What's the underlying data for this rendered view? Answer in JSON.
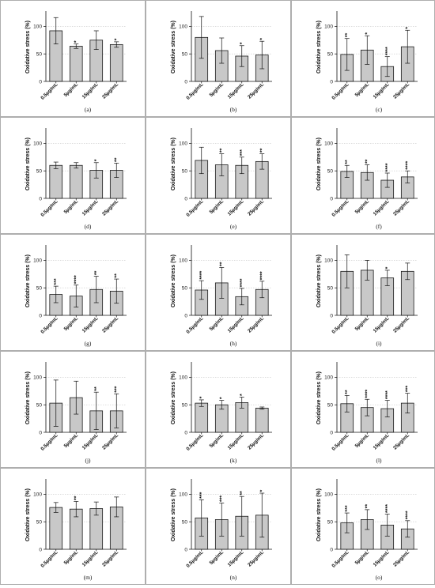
{
  "chart_data": [
    {
      "type": "bar",
      "panel_label": "(a)",
      "ylabel": "Oxidative stress (%)",
      "categories": [
        "0.5µg/mL",
        "5µg/mL",
        "15µg/mL",
        "25µg/mL"
      ],
      "values": [
        92,
        64,
        75,
        67
      ],
      "errors": [
        24,
        4,
        17,
        5
      ],
      "significance": [
        "",
        "*",
        "",
        "*"
      ],
      "ylim": [
        0,
        125
      ],
      "yticks": [
        0,
        50,
        100
      ],
      "grid": true
    },
    {
      "type": "bar",
      "panel_label": "(b)",
      "ylabel": "Oxidative stress (%)",
      "categories": [
        "0.5µg/mL",
        "5µg/mL",
        "15µg/mL",
        "25µg/mL"
      ],
      "values": [
        80,
        56,
        46,
        48
      ],
      "errors": [
        38,
        23,
        19,
        25
      ],
      "significance": [
        "",
        "",
        "*",
        "*"
      ],
      "ylim": [
        0,
        125
      ],
      "yticks": [
        0,
        50,
        100
      ],
      "grid": true
    },
    {
      "type": "bar",
      "panel_label": "(c)",
      "ylabel": "Oxidative stress (%)",
      "categories": [
        "0.5µg/mL",
        "5µg/mL",
        "15µg/mL",
        "25µg/mL"
      ],
      "values": [
        49,
        57,
        27,
        63
      ],
      "errors": [
        29,
        26,
        18,
        30
      ],
      "significance": [
        "**",
        "*",
        "****",
        "*"
      ],
      "ylim": [
        0,
        125
      ],
      "yticks": [
        0,
        50,
        100
      ],
      "grid": true
    },
    {
      "type": "bar",
      "panel_label": "(d)",
      "ylabel": "Oxidative stress (%)",
      "categories": [
        "0.5µg/mL",
        "5µg/mL",
        "15µg/mL",
        "25µg/mL"
      ],
      "values": [
        60,
        60,
        51,
        51
      ],
      "errors": [
        6,
        5,
        14,
        13
      ],
      "significance": [
        "",
        "",
        "*",
        "**"
      ],
      "ylim": [
        0,
        125
      ],
      "yticks": [
        0,
        50,
        100
      ],
      "grid": true
    },
    {
      "type": "bar",
      "panel_label": "(e)",
      "ylabel": "Oxidative stress (%)",
      "categories": [
        "0.5µg/mL",
        "5µg/mL",
        "15µg/mL",
        "25µg/mL"
      ],
      "values": [
        69,
        61,
        60,
        67
      ],
      "errors": [
        24,
        20,
        15,
        14
      ],
      "significance": [
        "",
        "**",
        "***",
        "**"
      ],
      "ylim": [
        0,
        125
      ],
      "yticks": [
        0,
        50,
        100
      ],
      "grid": true
    },
    {
      "type": "bar",
      "panel_label": "(f)",
      "ylabel": "Oxidative stress (%)",
      "categories": [
        "0.5µg/mL",
        "5µg/mL",
        "15µg/mL",
        "25µg/mL"
      ],
      "values": [
        49,
        47,
        33,
        39
      ],
      "errors": [
        11,
        14,
        13,
        11
      ],
      "significance": [
        "**",
        "**",
        "****",
        "****"
      ],
      "ylim": [
        0,
        125
      ],
      "yticks": [
        0,
        50,
        100
      ],
      "grid": true
    },
    {
      "type": "bar",
      "panel_label": "(g)",
      "ylabel": "Oxidative stress (%)",
      "categories": [
        "0.5µg/mL",
        "5µg/mL",
        "15µg/mL",
        "25µg/mL"
      ],
      "values": [
        38,
        35,
        47,
        44
      ],
      "errors": [
        15,
        20,
        24,
        22
      ],
      "significance": [
        "***",
        "****",
        "**",
        "**"
      ],
      "ylim": [
        0,
        125
      ],
      "yticks": [
        0,
        50,
        100
      ],
      "grid": true
    },
    {
      "type": "bar",
      "panel_label": "(h)",
      "ylabel": "Oxidative stress (%)",
      "categories": [
        "0.5µg/mL",
        "5µg/mL",
        "15µg/mL",
        "25µg/mL"
      ],
      "values": [
        46,
        59,
        34,
        47
      ],
      "errors": [
        17,
        28,
        15,
        15
      ],
      "significance": [
        "****",
        "**",
        "****",
        "****"
      ],
      "ylim": [
        0,
        125
      ],
      "yticks": [
        0,
        50,
        100
      ],
      "grid": true
    },
    {
      "type": "bar",
      "panel_label": "(i)",
      "ylabel": "Oxidative stress (%)",
      "categories": [
        "0.5µg/mL",
        "5µg/mL",
        "15µg/mL",
        "25µg/mL"
      ],
      "values": [
        80,
        82,
        68,
        80
      ],
      "errors": [
        30,
        18,
        14,
        15
      ],
      "significance": [
        "",
        "",
        "*",
        ""
      ],
      "ylim": [
        0,
        125
      ],
      "yticks": [
        0,
        50,
        100
      ],
      "grid": true
    },
    {
      "type": "bar",
      "panel_label": "(j)",
      "ylabel": "Oxidative stress (%)",
      "categories": [
        "0.5µg/mL",
        "5µg/mL",
        "15µg/mL",
        "25µg/mL"
      ],
      "values": [
        53,
        63,
        39,
        39
      ],
      "errors": [
        42,
        30,
        34,
        31
      ],
      "significance": [
        "",
        "",
        "**",
        "***"
      ],
      "ylim": [
        0,
        125
      ],
      "yticks": [
        0,
        50,
        100
      ],
      "grid": true
    },
    {
      "type": "bar",
      "panel_label": "(k)",
      "ylabel": "Oxidative stress (%)",
      "categories": [
        "0.5µg/mL",
        "5µg/mL",
        "15µg/mL",
        "25µg/mL"
      ],
      "values": [
        53,
        50,
        54,
        44
      ],
      "errors": [
        6,
        8,
        10,
        2
      ],
      "significance": [
        "*",
        "*",
        "*",
        ""
      ],
      "ylim": [
        0,
        125
      ],
      "yticks": [
        0,
        50,
        100
      ],
      "grid": true
    },
    {
      "type": "bar",
      "panel_label": "(l)",
      "ylabel": "Oxidative stress (%)",
      "categories": [
        "0.5µg/mL",
        "5µg/mL",
        "15µg/mL",
        "25µg/mL"
      ],
      "values": [
        52,
        45,
        43,
        53
      ],
      "errors": [
        15,
        15,
        15,
        18
      ],
      "significance": [
        "**",
        "****",
        "****",
        "***"
      ],
      "ylim": [
        0,
        125
      ],
      "yticks": [
        0,
        50,
        100
      ],
      "grid": true
    },
    {
      "type": "bar",
      "panel_label": "(m)",
      "ylabel": "Oxidative stress (%)",
      "categories": [
        "0.5µg/mL",
        "5µg/mL",
        "15µg/mL",
        "25µg/mL"
      ],
      "values": [
        76,
        73,
        74,
        77
      ],
      "errors": [
        9,
        14,
        12,
        18
      ],
      "significance": [
        "",
        "**",
        "",
        ""
      ],
      "ylim": [
        0,
        125
      ],
      "yticks": [
        0,
        50,
        100
      ],
      "grid": true
    },
    {
      "type": "bar",
      "panel_label": "(n)",
      "ylabel": "Oxidative stress (%)",
      "categories": [
        "0.5µg/mL",
        "5µg/mL",
        "15µg/mL",
        "25µg/mL"
      ],
      "values": [
        57,
        54,
        60,
        62
      ],
      "errors": [
        33,
        30,
        36,
        40
      ],
      "significance": [
        "***",
        "***",
        "**",
        "*"
      ],
      "ylim": [
        0,
        125
      ],
      "yticks": [
        0,
        50,
        100
      ],
      "grid": true
    },
    {
      "type": "bar",
      "panel_label": "(o)",
      "ylabel": "Oxidative stress (%)",
      "categories": [
        "0.5µg/mL",
        "5µg/mL",
        "15µg/mL",
        "25µg/mL"
      ],
      "values": [
        48,
        54,
        44,
        37
      ],
      "errors": [
        18,
        18,
        20,
        15
      ],
      "significance": [
        "***",
        "**",
        "****",
        "****"
      ],
      "ylim": [
        0,
        125
      ],
      "yticks": [
        0,
        50,
        100
      ],
      "grid": true
    }
  ],
  "colors": {
    "bar_fill": "#c8c8c8",
    "bar_stroke": "#1a1a1a",
    "grid": "#c9c9c9",
    "panel_border": "#9a9a9a"
  }
}
